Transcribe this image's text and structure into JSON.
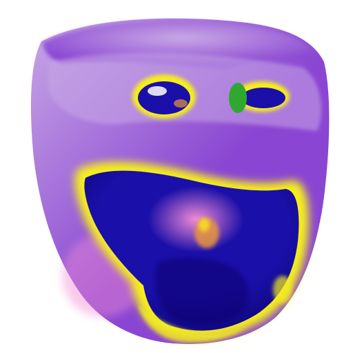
{
  "scene": {
    "subject": "3d-rendered-surface",
    "colormap": {
      "background": "#ffffff",
      "base": "#8a46d2",
      "base_light": "#c8a8e6",
      "deep": "#1a0fa8",
      "deep_dark": "#0c0670",
      "highlight": "#f4ee1c",
      "pink": "#f08ad6",
      "orange": "#e8963c",
      "green": "#2fa82f"
    }
  }
}
